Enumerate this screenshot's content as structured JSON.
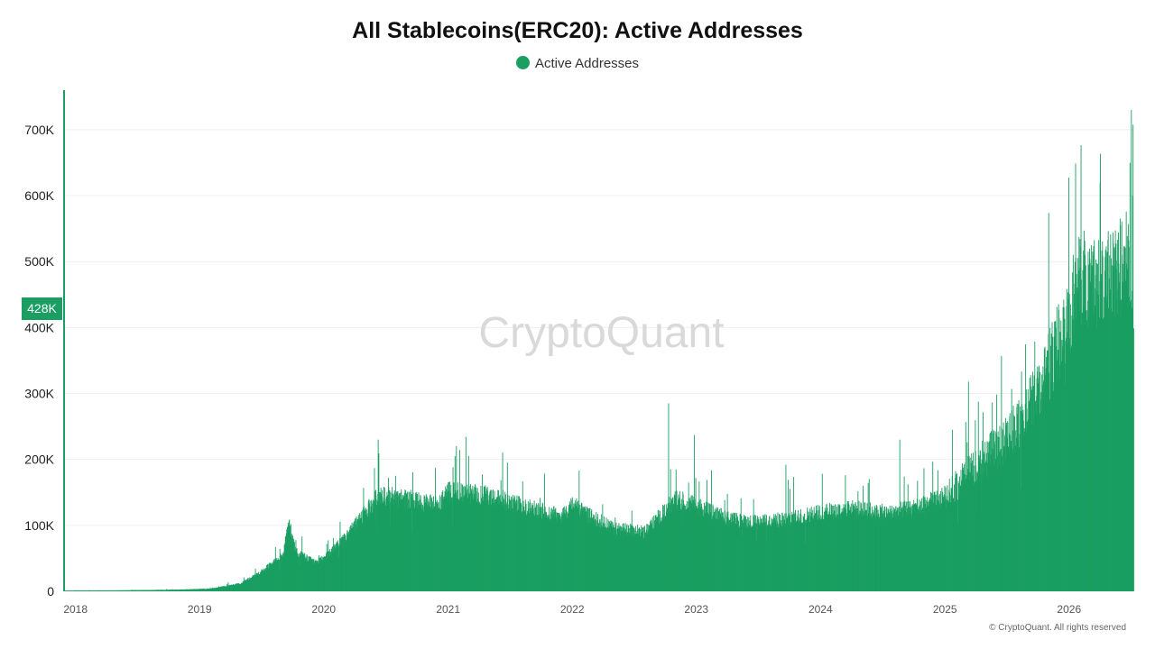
{
  "chart_data": {
    "type": "bar",
    "title": "All Stablecoins(ERC20): Active Addresses",
    "legend": [
      {
        "name": "Active Addresses",
        "color": "#1a9e62"
      }
    ],
    "series": [
      {
        "name": "Active Addresses",
        "color": "#1a9e62"
      }
    ],
    "x_range": [
      "2017-12",
      "2026-07"
    ],
    "x_tick_labels": [
      "2018",
      "2019",
      "2020",
      "2021",
      "2022",
      "2023",
      "2024",
      "2025",
      "2026"
    ],
    "ylim": [
      0,
      760000
    ],
    "y_ticks": [
      0,
      100000,
      200000,
      300000,
      400000,
      500000,
      600000,
      700000
    ],
    "y_tick_labels": [
      "0",
      "100K",
      "200K",
      "300K",
      "400K",
      "500K",
      "600K",
      "700K"
    ],
    "current_value_label": "428K",
    "current_value": 428000,
    "grid": true,
    "legend_position": "top-center",
    "trend_points": [
      [
        "2017-12-01",
        1000
      ],
      [
        "2018-06-01",
        1500
      ],
      [
        "2018-11-01",
        2500
      ],
      [
        "2019-02-01",
        4000
      ],
      [
        "2019-05-01",
        12000
      ],
      [
        "2019-07-01",
        30000
      ],
      [
        "2019-09-01",
        55000
      ],
      [
        "2019-09-20",
        105000
      ],
      [
        "2019-10-10",
        60000
      ],
      [
        "2019-12-01",
        45000
      ],
      [
        "2020-01-01",
        50000
      ],
      [
        "2020-03-01",
        80000
      ],
      [
        "2020-05-01",
        120000
      ],
      [
        "2020-06-10",
        145000
      ],
      [
        "2020-09-01",
        140000
      ],
      [
        "2020-12-01",
        130000
      ],
      [
        "2021-01-01",
        150000
      ],
      [
        "2021-05-01",
        145000
      ],
      [
        "2021-09-01",
        125000
      ],
      [
        "2021-12-01",
        115000
      ],
      [
        "2022-01-01",
        130000
      ],
      [
        "2022-05-01",
        95000
      ],
      [
        "2022-08-01",
        90000
      ],
      [
        "2022-11-01",
        140000
      ],
      [
        "2023-01-01",
        130000
      ],
      [
        "2023-04-01",
        110000
      ],
      [
        "2023-07-01",
        105000
      ],
      [
        "2023-10-01",
        110000
      ],
      [
        "2024-01-01",
        120000
      ],
      [
        "2024-04-01",
        125000
      ],
      [
        "2024-07-01",
        120000
      ],
      [
        "2024-10-01",
        125000
      ],
      [
        "2025-01-01",
        145000
      ],
      [
        "2025-04-01",
        190000
      ],
      [
        "2025-07-01",
        230000
      ],
      [
        "2025-10-01",
        300000
      ],
      [
        "2026-01-01",
        420000
      ],
      [
        "2026-02-01",
        480000
      ],
      [
        "2026-04-01",
        460000
      ],
      [
        "2026-06-20",
        500000
      ],
      [
        "2026-07-05",
        430000
      ]
    ],
    "spikes": [
      [
        "2020-06-08",
        230000
      ],
      [
        "2021-01-20",
        205000
      ],
      [
        "2022-10-10",
        285000
      ],
      [
        "2022-12-25",
        237000
      ],
      [
        "2023-09-20",
        192000
      ],
      [
        "2024-08-20",
        230000
      ],
      [
        "2025-03-10",
        318000
      ],
      [
        "2025-06-15",
        357000
      ],
      [
        "2026-04-01",
        620000
      ],
      [
        "2026-06-28",
        650000
      ],
      [
        "2026-07-02",
        730000
      ]
    ]
  },
  "watermark": "CryptoQuant",
  "copyright": "© CryptoQuant. All rights reserved"
}
